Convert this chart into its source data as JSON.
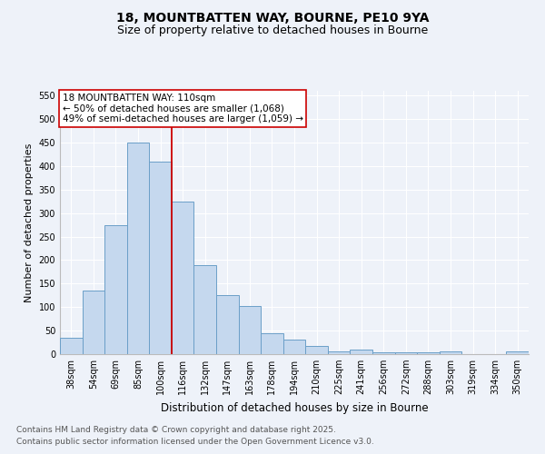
{
  "title_line1": "18, MOUNTBATTEN WAY, BOURNE, PE10 9YA",
  "title_line2": "Size of property relative to detached houses in Bourne",
  "xlabel": "Distribution of detached houses by size in Bourne",
  "ylabel": "Number of detached properties",
  "bar_values": [
    35,
    135,
    275,
    450,
    410,
    325,
    190,
    125,
    103,
    45,
    30,
    18,
    5,
    9,
    4,
    4,
    3,
    6,
    0,
    0,
    6
  ],
  "bar_width": 1.0,
  "bar_color": "#c5d8ee",
  "bar_edgecolor": "#6b9fc8",
  "bar_linewidth": 0.7,
  "vline_color": "#cc0000",
  "vline_linewidth": 1.3,
  "vline_x": 4.5,
  "ylim": [
    0,
    560
  ],
  "yticks": [
    0,
    50,
    100,
    150,
    200,
    250,
    300,
    350,
    400,
    450,
    500,
    550
  ],
  "annotation_text": "18 MOUNTBATTEN WAY: 110sqm\n← 50% of detached houses are smaller (1,068)\n49% of semi-detached houses are larger (1,059) →",
  "annotation_box_color": "#cc0000",
  "footer_line1": "Contains HM Land Registry data © Crown copyright and database right 2025.",
  "footer_line2": "Contains public sector information licensed under the Open Government Licence v3.0.",
  "background_color": "#eef2f9",
  "grid_color": "#ffffff",
  "title_fontsize": 10,
  "subtitle_fontsize": 9,
  "xlabel_fontsize": 8.5,
  "ylabel_fontsize": 8,
  "tick_fontsize": 7,
  "annotation_fontsize": 7.5,
  "footer_fontsize": 6.5,
  "x_tick_labels": [
    "38sqm",
    "54sqm",
    "69sqm",
    "85sqm",
    "100sqm",
    "116sqm",
    "132sqm",
    "147sqm",
    "163sqm",
    "178sqm",
    "194sqm",
    "210sqm",
    "225sqm",
    "241sqm",
    "256sqm",
    "272sqm",
    "288sqm",
    "303sqm",
    "319sqm",
    "334sqm",
    "350sqm"
  ]
}
